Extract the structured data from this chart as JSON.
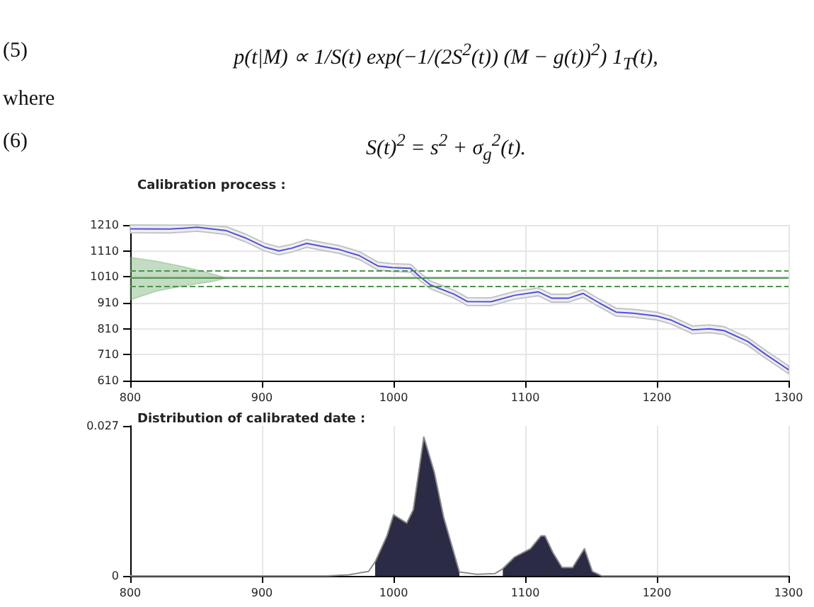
{
  "chart_data": [
    {
      "type": "other",
      "annotations": [
        "(5)",
        "p(t|M) ∝ 1/S(t) exp(−1/(2S$^{2}$(t)) (M − g(t))$^{2}$) 1$_{T}$(t),",
        "where",
        "(6)",
        "S(t)$^{2}$ = s$^{2}$ + σ$_{g}$$^{2}$(t)."
      ]
    },
    {
      "type": "line",
      "title": "Calibration process :",
      "xlim": [
        800,
        1300
      ],
      "xticks": [
        800,
        900,
        1000,
        1100,
        1200,
        1300
      ],
      "ylim": [
        610,
        1210
      ],
      "yticks": [
        610,
        710,
        810,
        910,
        1010,
        1110,
        1210
      ],
      "grid": true,
      "marker": "none",
      "ref_lines": [
        {
          "axis": "y",
          "value": 1005,
          "color": "#4d944d",
          "line_style": "solid"
        },
        {
          "axis": "y",
          "value": 1032,
          "color": "#4d944d",
          "line_style": "dashed"
        },
        {
          "axis": "y",
          "value": 974,
          "color": "#4d944d",
          "line_style": "dashed"
        }
      ],
      "series": [
        {
          "type": "area",
          "color": "#6aa86a",
          "x": [
            800,
            820,
            840,
            860,
            873,
            860,
            840,
            820,
            805,
            800
          ],
          "values": [
            1085,
            1070,
            1050,
            1025,
            1005,
            990,
            975,
            955,
            930,
            921
          ]
        },
        {
          "type": "line",
          "color": "#5050dd",
          "x": [
            800,
            830,
            851,
            873,
            887,
            902,
            913,
            923,
            934,
            945,
            959,
            974,
            988,
            999,
            1013,
            1019,
            1028,
            1046,
            1056,
            1074,
            1092,
            1110,
            1120,
            1133,
            1144,
            1156,
            1169,
            1182,
            1200,
            1211,
            1227,
            1240,
            1251,
            1269,
            1283,
            1300
          ],
          "values": [
            1195,
            1194,
            1201,
            1188,
            1161,
            1125,
            1110,
            1121,
            1139,
            1128,
            1115,
            1092,
            1052,
            1046,
            1043,
            1015,
            979,
            943,
            915,
            914,
            939,
            952,
            928,
            928,
            946,
            910,
            874,
            870,
            859,
            843,
            806,
            810,
            803,
            761,
            710,
            652
          ],
          "lower": [
            1180,
            1179,
            1186,
            1173,
            1146,
            1110,
            1095,
            1106,
            1124,
            1113,
            1100,
            1077,
            1037,
            1031,
            1028,
            1000,
            964,
            928,
            900,
            899,
            924,
            937,
            913,
            913,
            931,
            895,
            859,
            855,
            844,
            828,
            791,
            795,
            788,
            746,
            695,
            637
          ],
          "upper": [
            1210,
            1209,
            1210,
            1203,
            1176,
            1140,
            1125,
            1136,
            1154,
            1143,
            1130,
            1107,
            1067,
            1061,
            1058,
            1030,
            994,
            958,
            930,
            929,
            954,
            967,
            943,
            943,
            961,
            925,
            889,
            885,
            874,
            858,
            821,
            825,
            818,
            776,
            725,
            667
          ]
        }
      ]
    },
    {
      "type": "area",
      "title": "Distribution of calibrated date :",
      "xlim": [
        800,
        1300
      ],
      "xticks": [
        800,
        900,
        1000,
        1100,
        1200,
        1300
      ],
      "ylim": [
        0,
        0.027
      ],
      "yticks": [
        0,
        0.027
      ],
      "grid": "x",
      "marker": "none",
      "x": [
        800,
        900,
        950,
        966,
        981,
        986,
        995,
        1000,
        1010,
        1015,
        1023,
        1031,
        1038,
        1050,
        1063,
        1077,
        1083,
        1092,
        1104,
        1112,
        1115,
        1121,
        1128,
        1136,
        1145,
        1151,
        1158,
        1200,
        1300
      ],
      "series": [
        {
          "type": "area",
          "color": "#2b2b45",
          "values": [
            null,
            null,
            null,
            null,
            null,
            0.0025,
            0.0072,
            0.011,
            0.0095,
            0.0119,
            0.025,
            0.0186,
            0.0106,
            0.0007,
            null,
            null,
            0.0013,
            0.0034,
            0.0049,
            0.0072,
            0.0072,
            0.0042,
            0.0015,
            0.0015,
            0.0049,
            0.0008,
            0,
            null,
            null
          ]
        },
        {
          "type": "line",
          "color": "#8a8a8a",
          "values": [
            0,
            0,
            0,
            0.0002,
            0.0008,
            0.0025,
            0.0072,
            0.011,
            0.0095,
            0.0119,
            0.025,
            0.0186,
            0.0106,
            0.0007,
            0.0003,
            0.0004,
            0.0013,
            0.0034,
            0.0049,
            0.0072,
            0.0072,
            0.0042,
            0.0015,
            0.0015,
            0.0049,
            0.0008,
            0,
            0,
            0
          ]
        }
      ]
    }
  ]
}
